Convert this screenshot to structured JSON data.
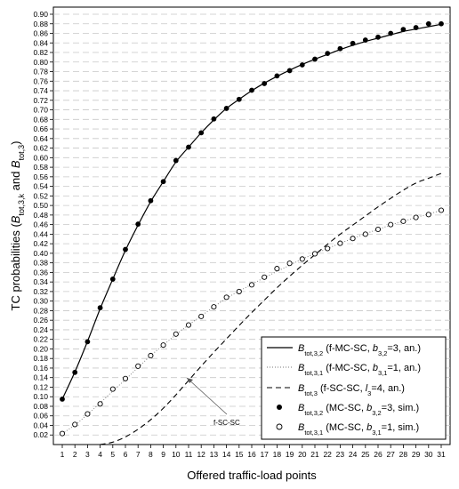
{
  "chart_data": {
    "type": "line",
    "xlabel": "Offered traffic-load points",
    "ylabel_parts": {
      "lead": "TC probabilities (",
      "b1": "B",
      "b1_sub": "tot,3,k",
      "mid": " and ",
      "b2": "B",
      "b2_sub": "tot,3",
      "end": ")"
    },
    "x": [
      1,
      2,
      3,
      4,
      5,
      6,
      7,
      8,
      9,
      10,
      11,
      12,
      13,
      14,
      15,
      16,
      17,
      18,
      19,
      20,
      21,
      22,
      23,
      24,
      25,
      26,
      27,
      28,
      29,
      30,
      31
    ],
    "x_ticks": [
      "1",
      "2",
      "3",
      "4",
      "5",
      "6",
      "7",
      "8",
      "9",
      "10",
      "11",
      "12",
      "13",
      "14",
      "15",
      "16",
      "17",
      "18",
      "19",
      "20",
      "21",
      "22",
      "23",
      "24",
      "25",
      "26",
      "27",
      "28",
      "29",
      "30",
      "31"
    ],
    "ylim": [
      0,
      0.9
    ],
    "y_ticks": [
      "0.02",
      "0.04",
      "0.06",
      "0.08",
      "0.10",
      "0.12",
      "0.14",
      "0.16",
      "0.18",
      "0.20",
      "0.22",
      "0.24",
      "0.26",
      "0.28",
      "0.30",
      "0.32",
      "0.34",
      "0.36",
      "0.38",
      "0.40",
      "0.42",
      "0.44",
      "0.46",
      "0.48",
      "0.50",
      "0.52",
      "0.54",
      "0.56",
      "0.58",
      "0.60",
      "0.62",
      "0.64",
      "0.66",
      "0.68",
      "0.70",
      "0.72",
      "0.74",
      "0.76",
      "0.78",
      "0.80",
      "0.82",
      "0.84",
      "0.86",
      "0.88",
      "0.90"
    ],
    "grid": "horizontal dashed",
    "legend_position": "bottom-right",
    "annotation": "f-SC-SC",
    "series": [
      {
        "style": "solid",
        "legend": {
          "sym": "B",
          "sub": "tot,3,2",
          "text": " (f-MC-SC, ",
          "pvar": "b",
          "psub": "3,2",
          "pval": "=3, an.)"
        },
        "values": [
          0.095,
          0.152,
          0.216,
          0.284,
          0.346,
          0.406,
          0.459,
          0.508,
          0.55,
          0.591,
          0.622,
          0.652,
          0.679,
          0.703,
          0.722,
          0.74,
          0.756,
          0.77,
          0.783,
          0.795,
          0.806,
          0.816,
          0.826,
          0.835,
          0.843,
          0.85,
          0.857,
          0.864,
          0.869,
          0.874,
          0.879
        ]
      },
      {
        "style": "dotted",
        "legend": {
          "sym": "B",
          "sub": "tot,3,1",
          "text": " (f-MC-SC, ",
          "pvar": "b",
          "psub": "3,1",
          "pval": "=1, an.)"
        },
        "values": [
          0.023,
          0.041,
          0.063,
          0.087,
          0.112,
          0.136,
          0.161,
          0.186,
          0.208,
          0.23,
          0.25,
          0.269,
          0.288,
          0.306,
          0.321,
          0.335,
          0.349,
          0.362,
          0.375,
          0.388,
          0.399,
          0.41,
          0.421,
          0.431,
          0.441,
          0.45,
          0.459,
          0.467,
          0.475,
          0.482,
          0.49
        ]
      },
      {
        "style": "dashed",
        "legend": {
          "sym": "B",
          "sub": "tot,3",
          "text": " (f-SC-SC, ",
          "pvar": "l",
          "psub": "3",
          "pval": "=4, an.)"
        },
        "values": [
          null,
          null,
          null,
          0.0,
          0.005,
          0.016,
          0.032,
          0.052,
          0.076,
          0.104,
          0.134,
          0.164,
          0.193,
          0.221,
          0.249,
          0.276,
          0.302,
          0.328,
          0.352,
          0.375,
          0.397,
          0.419,
          0.44,
          0.459,
          0.478,
          0.497,
          0.515,
          0.532,
          0.547,
          0.557,
          0.567
        ]
      },
      {
        "style": "filled-circle",
        "legend": {
          "sym": "B",
          "sub": "tot,3,2",
          "text": " (MC-SC, ",
          "pvar": "b",
          "psub": "3,2",
          "pval": "=3, sim.)"
        },
        "values": [
          0.095,
          0.151,
          0.215,
          0.286,
          0.346,
          0.408,
          0.461,
          0.51,
          0.55,
          0.594,
          0.622,
          0.652,
          0.681,
          0.703,
          0.722,
          0.741,
          0.755,
          0.771,
          0.782,
          0.794,
          0.806,
          0.818,
          0.828,
          0.839,
          0.846,
          0.852,
          0.86,
          0.868,
          0.872,
          0.88,
          0.88
        ]
      },
      {
        "style": "open-circle",
        "legend": {
          "sym": "B",
          "sub": "tot,3,1",
          "text": " (MC-SC, ",
          "pvar": "b",
          "psub": "3,1",
          "pval": "=1, sim.)"
        },
        "values": [
          0.023,
          0.042,
          0.064,
          0.085,
          0.116,
          0.138,
          0.164,
          0.186,
          0.208,
          0.231,
          0.25,
          0.268,
          0.288,
          0.308,
          0.32,
          0.334,
          0.35,
          0.368,
          0.379,
          0.388,
          0.399,
          0.41,
          0.421,
          0.431,
          0.44,
          0.45,
          0.46,
          0.467,
          0.475,
          0.481,
          0.49
        ]
      }
    ]
  }
}
